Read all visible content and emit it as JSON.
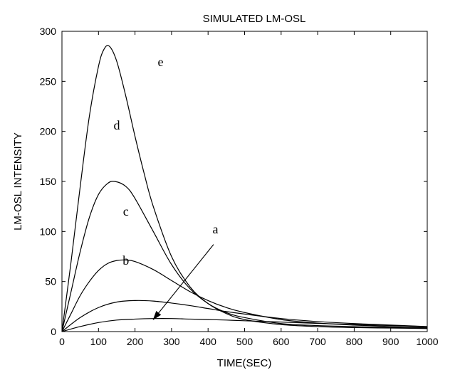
{
  "chart_data": {
    "type": "line",
    "title": "SIMULATED LM-OSL",
    "xlabel": "TIME(SEC)",
    "ylabel": "LM-OSL INTENSITY",
    "xlim": [
      0,
      1000
    ],
    "ylim": [
      0,
      300
    ],
    "xticks": [
      0,
      100,
      200,
      300,
      400,
      500,
      600,
      700,
      800,
      900,
      1000
    ],
    "yticks": [
      0,
      50,
      100,
      150,
      200,
      250,
      300
    ],
    "grid": false,
    "series": [
      {
        "name": "a",
        "x": [
          0,
          50,
          100,
          150,
          200,
          250,
          300,
          350,
          400,
          450,
          500,
          600,
          700,
          800,
          900,
          1000
        ],
        "y": [
          0,
          5,
          9,
          11.5,
          12.5,
          13,
          13,
          12.5,
          12,
          11.5,
          10.8,
          9.5,
          8.2,
          7,
          6,
          5
        ]
      },
      {
        "name": "b",
        "x": [
          0,
          50,
          100,
          150,
          200,
          250,
          300,
          350,
          400,
          450,
          500,
          600,
          700,
          800,
          900,
          1000
        ],
        "y": [
          0,
          14,
          24,
          29.5,
          31,
          30.5,
          28.5,
          26,
          23,
          20,
          17.5,
          13,
          10,
          8,
          6.5,
          5
        ]
      },
      {
        "name": "c",
        "x": [
          0,
          25,
          50,
          75,
          100,
          125,
          150,
          175,
          200,
          250,
          300,
          350,
          400,
          450,
          500,
          600,
          700,
          800,
          900,
          1000
        ],
        "y": [
          0,
          18,
          36,
          50,
          61,
          68,
          71,
          71.5,
          70,
          62,
          51,
          40,
          31,
          24,
          19,
          12,
          8.5,
          6.5,
          5,
          4
        ]
      },
      {
        "name": "d",
        "x": [
          0,
          25,
          50,
          75,
          100,
          125,
          145,
          175,
          200,
          250,
          300,
          350,
          400,
          450,
          500,
          600,
          700,
          800,
          900,
          1000
        ],
        "y": [
          0,
          40,
          80,
          114,
          137,
          148,
          150,
          145,
          133,
          100,
          67,
          43,
          28,
          19,
          14,
          8,
          6,
          5,
          4,
          3.5
        ]
      },
      {
        "name": "e",
        "x": [
          0,
          25,
          50,
          75,
          100,
          115,
          130,
          150,
          175,
          200,
          225,
          250,
          300,
          350,
          400,
          450,
          500,
          600,
          700,
          800,
          900,
          1000
        ],
        "y": [
          0,
          70,
          145,
          215,
          265,
          282,
          285,
          270,
          235,
          195,
          158,
          125,
          75,
          45,
          28,
          18,
          12,
          7,
          5,
          4,
          3.5,
          3
        ]
      }
    ],
    "annotations": [
      {
        "text": "e",
        "x": 270,
        "y": 265
      },
      {
        "text": "d",
        "x": 150,
        "y": 202
      },
      {
        "text": "c",
        "x": 175,
        "y": 116
      },
      {
        "text": "b",
        "x": 175,
        "y": 67
      },
      {
        "text": "a",
        "x": 420,
        "y": 98
      }
    ],
    "arrow": {
      "from": [
        415,
        87
      ],
      "to": [
        250,
        12
      ]
    }
  }
}
